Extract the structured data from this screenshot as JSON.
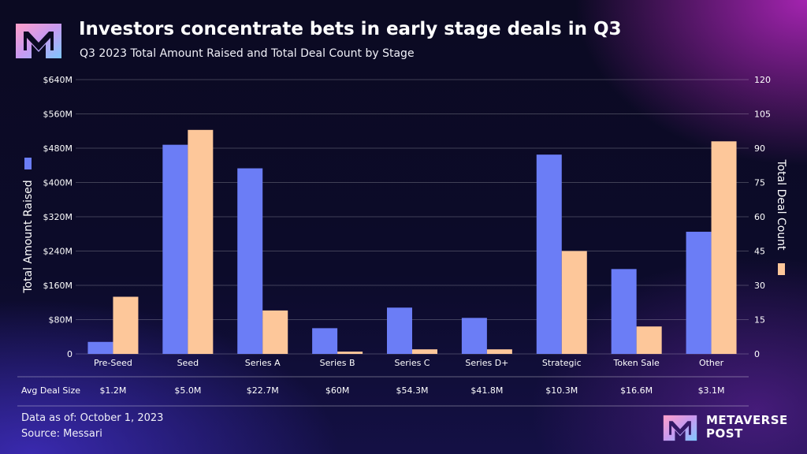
{
  "header": {
    "title": "Investors concentrate bets in early stage deals in Q3",
    "subtitle": "Q3 2023 Total Amount Raised and Total Deal Count by Stage"
  },
  "chart_data": {
    "type": "bar",
    "categories": [
      "Pre-Seed",
      "Seed",
      "Series A",
      "Series B",
      "Series C",
      "Series D+",
      "Strategic",
      "Token Sale",
      "Other"
    ],
    "series": [
      {
        "name": "Total Amount Raised",
        "axis": "left",
        "color": "#6b7df6",
        "values": [
          28,
          488,
          433,
          60,
          108,
          84,
          465,
          198,
          285
        ]
      },
      {
        "name": "Total Deal Count",
        "axis": "right",
        "color": "#fdc79a",
        "values": [
          25,
          98,
          19,
          1,
          2,
          2,
          45,
          12,
          93
        ]
      }
    ],
    "y_left": {
      "label": "Total Amount Raised",
      "range": [
        0,
        640
      ],
      "ticks": [
        0,
        80,
        160,
        240,
        320,
        400,
        480,
        560,
        640
      ],
      "tick_labels": [
        "0",
        "$80M",
        "$160M",
        "$240M",
        "$320M",
        "$400M",
        "$480M",
        "$560M",
        "$640M"
      ]
    },
    "y_right": {
      "label": "Total Deal Count",
      "range": [
        0,
        120
      ],
      "ticks": [
        0,
        15,
        30,
        45,
        60,
        75,
        90,
        105,
        120
      ],
      "tick_labels": [
        "0",
        "15",
        "30",
        "45",
        "60",
        "75",
        "90",
        "105",
        "120"
      ]
    },
    "grid": true,
    "legend": "axis-side markers",
    "table_row": {
      "label": "Avg Deal Size",
      "values": [
        "$1.2M",
        "$5.0M",
        "$22.7M",
        "$60M",
        "$54.3M",
        "$41.8M",
        "$10.3M",
        "$16.6M",
        "$3.1M"
      ]
    }
  },
  "footer": {
    "date": "Data as of: October 1, 2023",
    "source": "Source: Messari"
  },
  "brand": {
    "line1": "METAVERSE",
    "line2": "POST"
  }
}
